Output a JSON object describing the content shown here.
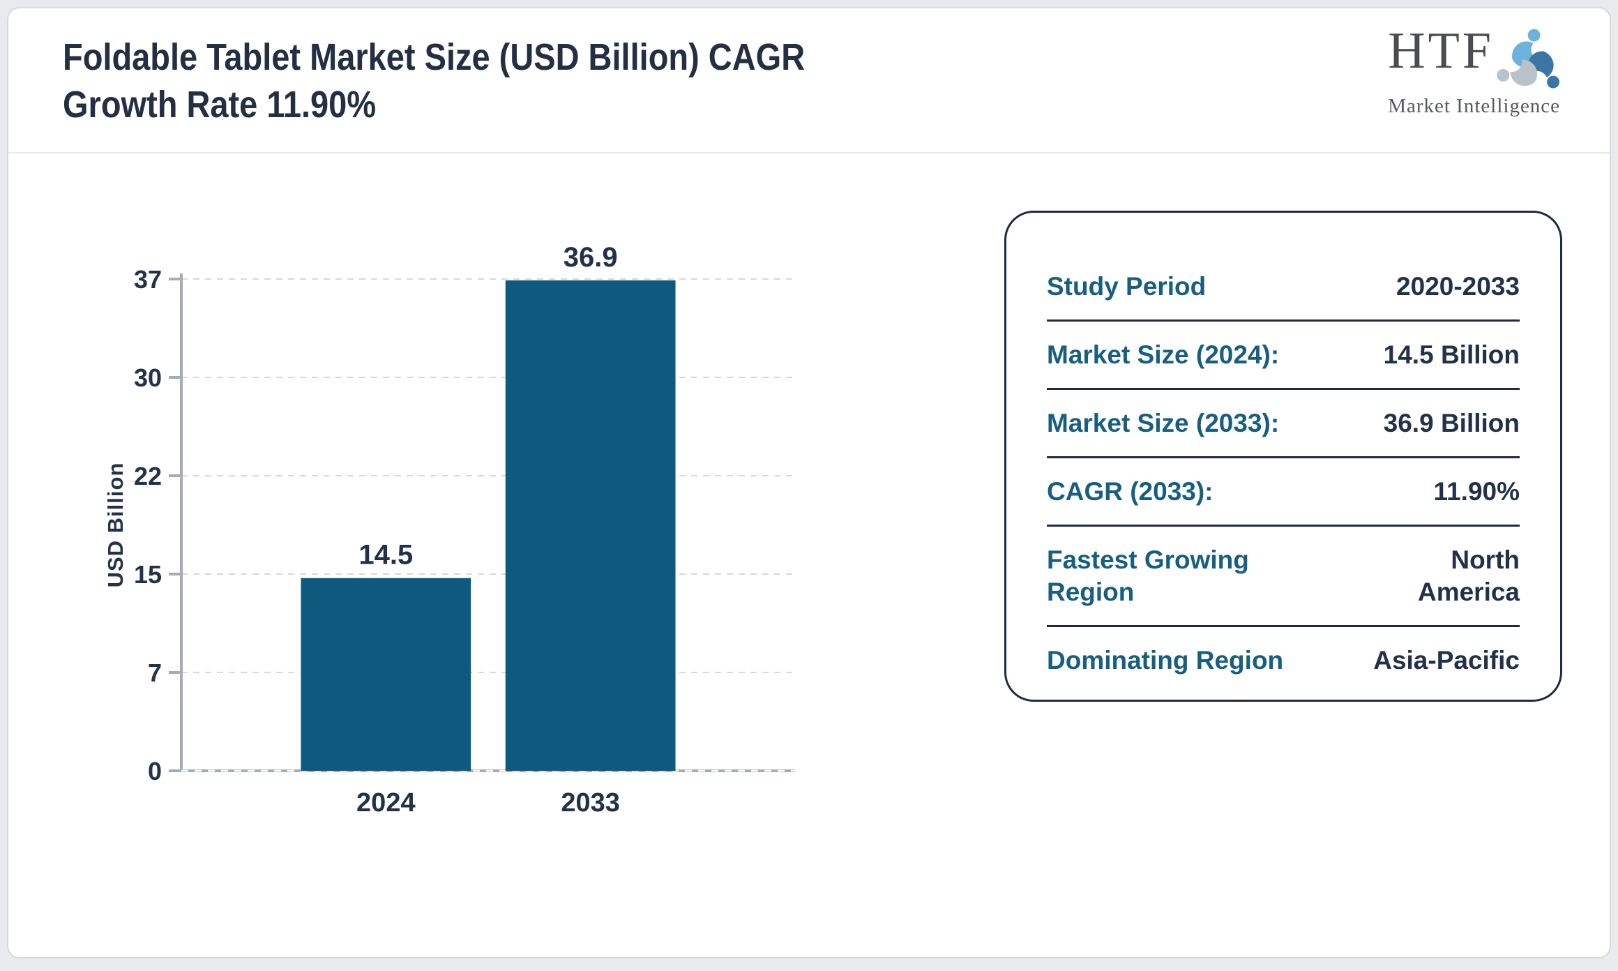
{
  "header": {
    "title_line1": "Foldable Tablet Market Size (USD Billion) CAGR",
    "title_line2": "Growth Rate 11.90%",
    "logo": {
      "text": "HTF",
      "subtext": "Market Intelligence"
    }
  },
  "chart_data": {
    "type": "bar",
    "title": "Foldable Tablet Market Size (USD Billion) CAGR Growth Rate 11.90%",
    "categories": [
      "2024",
      "2033"
    ],
    "values": [
      14.5,
      36.9
    ],
    "xlabel": "",
    "ylabel": "USD Billion",
    "ylim": [
      0,
      37
    ],
    "y_ticks": {
      "values": [
        0,
        7.4,
        14.8,
        22.2,
        29.6,
        37
      ],
      "labels": [
        "0",
        "7",
        "15",
        "22",
        "30",
        "37"
      ]
    },
    "grid": true,
    "legend_position": "none",
    "bar_color": "#0e5a7e"
  },
  "panel": {
    "rows": [
      {
        "label": "Study Period",
        "value": "2020-2033"
      },
      {
        "label": "Market Size (2024):",
        "value": "14.5 Billion"
      },
      {
        "label": "Market Size (2033):",
        "value": "36.9 Billion"
      },
      {
        "label": "CAGR (2033):",
        "value": "11.90%"
      },
      {
        "label": "Fastest Growing Region",
        "value": "North America"
      },
      {
        "label": "Dominating Region",
        "value": "Asia-Pacific"
      }
    ]
  },
  "colors": {
    "bar_fill": "#0e5a7e",
    "accent_teal": "#175e80",
    "navy_text": "#22304a",
    "panel_border": "#1e2c40"
  }
}
